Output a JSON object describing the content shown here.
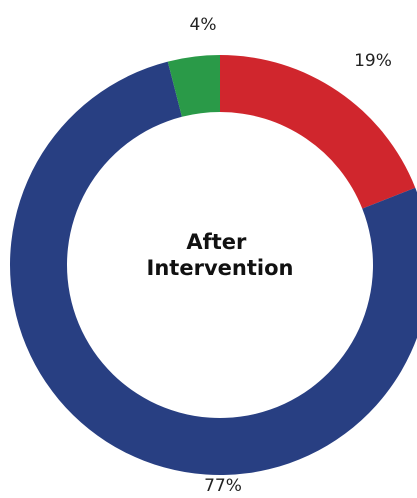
{
  "chart_data": {
    "type": "pie",
    "center_label_lines": [
      "After",
      "Intervention"
    ],
    "slices": [
      {
        "value": 19,
        "label": "19%",
        "color": "#d0262d"
      },
      {
        "value": 77,
        "label": "77%",
        "color": "#283f82"
      },
      {
        "value": 4,
        "label": "4%",
        "color": "#2a9a48"
      }
    ],
    "start_angle_deg": 0,
    "direction": "clockwise"
  }
}
